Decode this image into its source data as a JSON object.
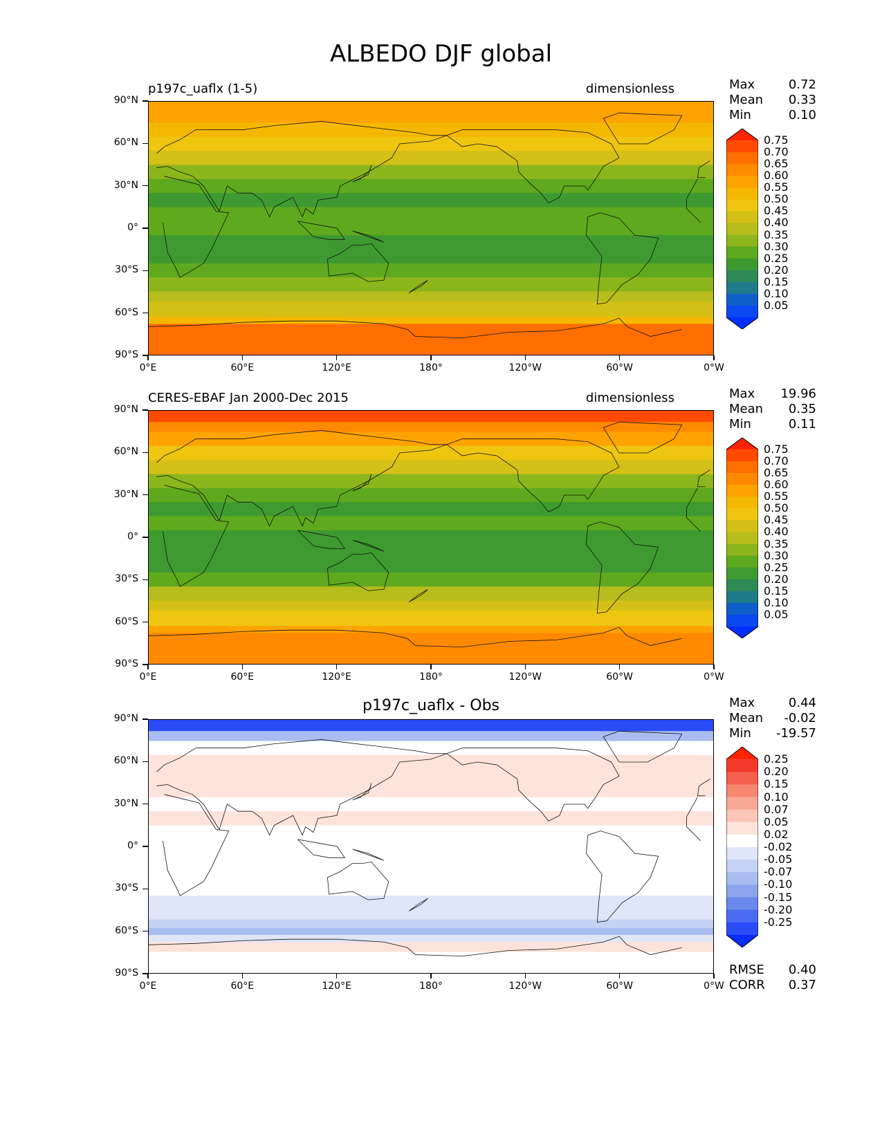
{
  "title": "ALBEDO DJF global",
  "chart_data": [
    {
      "type": "heatmap",
      "title_left": "p197c_uaflx (1-5)",
      "title_right": "dimensionless",
      "stats": [
        [
          "Max",
          "0.72"
        ],
        [
          "Mean",
          "0.33"
        ],
        [
          "Min",
          "0.10"
        ]
      ],
      "colorbar": {
        "labels": [
          "0.75",
          "0.70",
          "0.65",
          "0.60",
          "0.55",
          "0.50",
          "0.45",
          "0.40",
          "0.35",
          "0.30",
          "0.25",
          "0.20",
          "0.15",
          "0.10",
          "0.05"
        ],
        "colors": [
          "#ff2400",
          "#ff4a00",
          "#ff6e00",
          "#ff8a00",
          "#ffa300",
          "#f5b800",
          "#eec610",
          "#d4c016",
          "#b7bd1c",
          "#8db61c",
          "#5ea91e",
          "#3e9a30",
          "#2e8a55",
          "#1f7a8a",
          "#0e5fc8",
          "#0a48f0",
          "#0030ff"
        ]
      },
      "xticks": [
        "0°E",
        "60°E",
        "120°E",
        "180°",
        "120°W",
        "60°W",
        "0°W"
      ],
      "yticks": [
        "90°N",
        "60°N",
        "30°N",
        "0°",
        "30°S",
        "60°S",
        "90°S"
      ],
      "zonal_profile": {
        "lat": [
          90,
          82,
          75,
          65,
          55,
          45,
          35,
          25,
          15,
          5,
          -5,
          -15,
          -25,
          -35,
          -45,
          -52,
          -58,
          -63,
          -68,
          -75,
          -90
        ],
        "value": [
          null,
          0.6,
          0.58,
          0.55,
          0.5,
          0.44,
          0.35,
          0.28,
          0.26,
          0.3,
          0.28,
          0.25,
          0.25,
          0.28,
          0.36,
          0.42,
          0.45,
          0.45,
          0.55,
          0.68,
          0.7
        ]
      }
    },
    {
      "type": "heatmap",
      "title_left": "CERES-EBAF Jan 2000-Dec 2015",
      "title_right": "dimensionless",
      "stats": [
        [
          "Max",
          "19.96"
        ],
        [
          "Mean",
          "0.35"
        ],
        [
          "Min",
          "0.11"
        ]
      ],
      "colorbar": {
        "labels": [
          "0.75",
          "0.70",
          "0.65",
          "0.60",
          "0.55",
          "0.50",
          "0.45",
          "0.40",
          "0.35",
          "0.30",
          "0.25",
          "0.20",
          "0.15",
          "0.10",
          "0.05"
        ],
        "colors": [
          "#ff2400",
          "#ff4a00",
          "#ff6e00",
          "#ff8a00",
          "#ffa300",
          "#f5b800",
          "#eec610",
          "#d4c016",
          "#b7bd1c",
          "#8db61c",
          "#5ea91e",
          "#3e9a30",
          "#2e8a55",
          "#1f7a8a",
          "#0e5fc8",
          "#0a48f0",
          "#0030ff"
        ]
      },
      "xticks": [
        "0°E",
        "60°E",
        "120°E",
        "180°",
        "120°W",
        "60°W",
        "0°W"
      ],
      "yticks": [
        "90°N",
        "60°N",
        "30°N",
        "0°",
        "30°S",
        "60°S",
        "90°S"
      ],
      "zonal_profile": {
        "lat": [
          90,
          82,
          75,
          65,
          55,
          45,
          35,
          25,
          15,
          5,
          -5,
          -15,
          -25,
          -35,
          -45,
          -52,
          -58,
          -63,
          -68,
          -75,
          -90
        ],
        "value": [
          null,
          0.76,
          0.66,
          0.58,
          0.52,
          0.46,
          0.36,
          0.28,
          0.24,
          0.3,
          0.27,
          0.24,
          0.26,
          0.3,
          0.4,
          0.46,
          0.5,
          0.5,
          0.58,
          0.64,
          0.64
        ]
      }
    },
    {
      "type": "heatmap",
      "title_center": "p197c_uaflx - Obs",
      "stats": [
        [
          "Max",
          "0.44"
        ],
        [
          "Mean",
          "-0.02"
        ],
        [
          "Min",
          "-19.57"
        ]
      ],
      "colorbar": {
        "labels": [
          "0.25",
          "0.20",
          "0.15",
          "0.10",
          "0.07",
          "0.05",
          "0.02",
          "-0.02",
          "-0.05",
          "-0.07",
          "-0.10",
          "-0.15",
          "-0.20",
          "-0.25"
        ],
        "colors": [
          "#ff2400",
          "#f23a2a",
          "#f45f4e",
          "#f78870",
          "#f9a896",
          "#fbc6b8",
          "#fde3db",
          "#ffffff",
          "#dfe6f8",
          "#c6d2f4",
          "#aabdf0",
          "#8ba4ec",
          "#6a89ea",
          "#4a6cf0",
          "#2a4cf6",
          "#0a2cff"
        ]
      },
      "footer": [
        [
          "RMSE",
          "0.40"
        ],
        [
          "CORR",
          "0.37"
        ]
      ],
      "xticks": [
        "0°E",
        "60°E",
        "120°E",
        "180°",
        "120°W",
        "60°W",
        "0°W"
      ],
      "yticks": [
        "90°N",
        "60°N",
        "30°N",
        "0°",
        "30°S",
        "60°S",
        "90°S"
      ],
      "zonal_profile": {
        "lat": [
          90,
          82,
          75,
          65,
          55,
          45,
          35,
          25,
          15,
          5,
          -5,
          -15,
          -25,
          -35,
          -45,
          -52,
          -58,
          -63,
          -68,
          -75,
          -90
        ],
        "value": [
          null,
          -0.3,
          -0.08,
          0.0,
          0.03,
          0.02,
          0.02,
          0.01,
          0.02,
          0.0,
          0.0,
          -0.02,
          -0.02,
          -0.02,
          -0.03,
          -0.05,
          -0.07,
          -0.08,
          -0.04,
          0.02,
          0.01
        ]
      }
    }
  ]
}
